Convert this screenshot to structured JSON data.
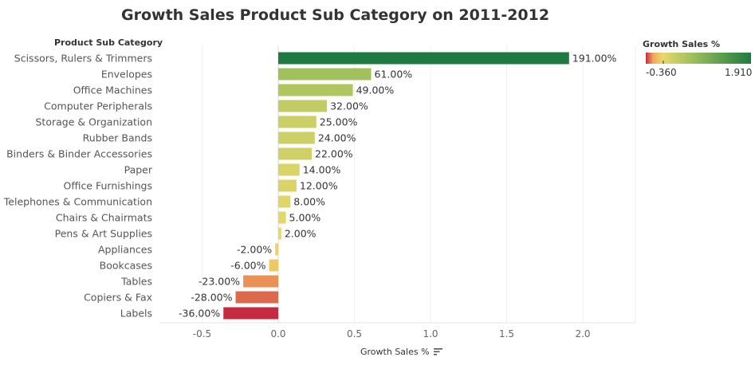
{
  "chart_data": {
    "type": "bar",
    "orientation": "horizontal",
    "title": "Growth Sales Product Sub Category on 2011-2012",
    "row_header": "Product Sub Category",
    "xlabel": "Growth Sales %",
    "xlim": [
      -0.6,
      2.35
    ],
    "xticks": [
      -0.5,
      0.0,
      0.5,
      1.0,
      1.5,
      2.0
    ],
    "xtick_labels": [
      "-0.5",
      "0.0",
      "0.5",
      "1.0",
      "1.5",
      "2.0"
    ],
    "grid": true,
    "categories": [
      "Scissors, Rulers & Trimmers",
      "Envelopes",
      "Office Machines",
      "Computer Peripherals",
      "Storage & Organization",
      "Rubber Bands",
      "Binders & Binder Accessories",
      "Paper",
      "Office Furnishings",
      "Telephones & Communication",
      "Chairs & Chairmats",
      "Pens & Art Supplies",
      "Appliances",
      "Bookcases",
      "Tables",
      "Copiers & Fax",
      "Labels"
    ],
    "values": [
      1.91,
      0.61,
      0.49,
      0.32,
      0.25,
      0.24,
      0.22,
      0.14,
      0.12,
      0.08,
      0.05,
      0.02,
      -0.02,
      -0.06,
      -0.23,
      -0.28,
      -0.36
    ],
    "data_labels": [
      "191.00%",
      "61.00%",
      "49.00%",
      "32.00%",
      "25.00%",
      "24.00%",
      "22.00%",
      "14.00%",
      "12.00%",
      "8.00%",
      "5.00%",
      "2.00%",
      "-2.00%",
      "-6.00%",
      "-23.00%",
      "-28.00%",
      "-36.00%"
    ],
    "legend": {
      "title": "Growth Sales %",
      "min_label": "-0.360",
      "max_label": "1.910",
      "min": -0.36,
      "max": 1.91,
      "placement": "top-right",
      "colors": [
        "#c42b3e",
        "#f2a85a",
        "#e8d96a",
        "#9bbf5e",
        "#1f7a3f"
      ]
    }
  },
  "icons": {
    "sort": "sort-descending-icon"
  }
}
